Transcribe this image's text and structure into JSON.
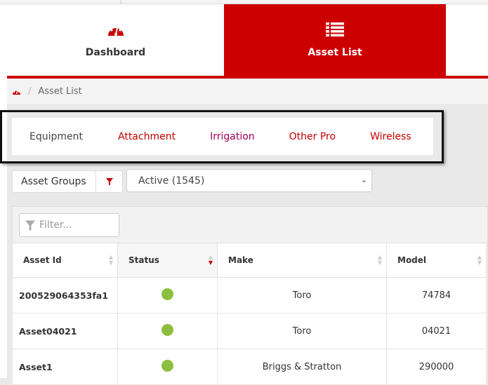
{
  "nav": {
    "tabs": [
      {
        "label": "Dashboard",
        "icon": "dashboard-gauge-icon",
        "active": false
      },
      {
        "label": "Asset List",
        "icon": "list-icon",
        "active": true
      }
    ]
  },
  "breadcrumb": {
    "home_icon": "dashboard-gauge-icon",
    "current": "Asset List"
  },
  "category_tabs": [
    "Equipment",
    "Attachment",
    "Irrigation",
    "Other Pro",
    "Wireless"
  ],
  "asset_groups": {
    "label": "Asset Groups",
    "icon": "filter-icon"
  },
  "status_select": {
    "value": "Active (1545)"
  },
  "filter": {
    "placeholder": "Filter..."
  },
  "table": {
    "columns": [
      "Asset Id",
      "Status",
      "Make",
      "Model"
    ],
    "sorted_column": "Status",
    "sort_direction": "descending",
    "rows": [
      {
        "id": "200529064353fa1",
        "status": "active",
        "make": "Toro",
        "model": "74784"
      },
      {
        "id": "Asset04021",
        "status": "active",
        "make": "Toro",
        "model": "04021"
      },
      {
        "id": "Asset1",
        "status": "active",
        "make": "Briggs & Stratton",
        "model": "290000"
      }
    ]
  },
  "colors": {
    "brand": "#cc0000",
    "status_active": "#8cbf3f"
  }
}
